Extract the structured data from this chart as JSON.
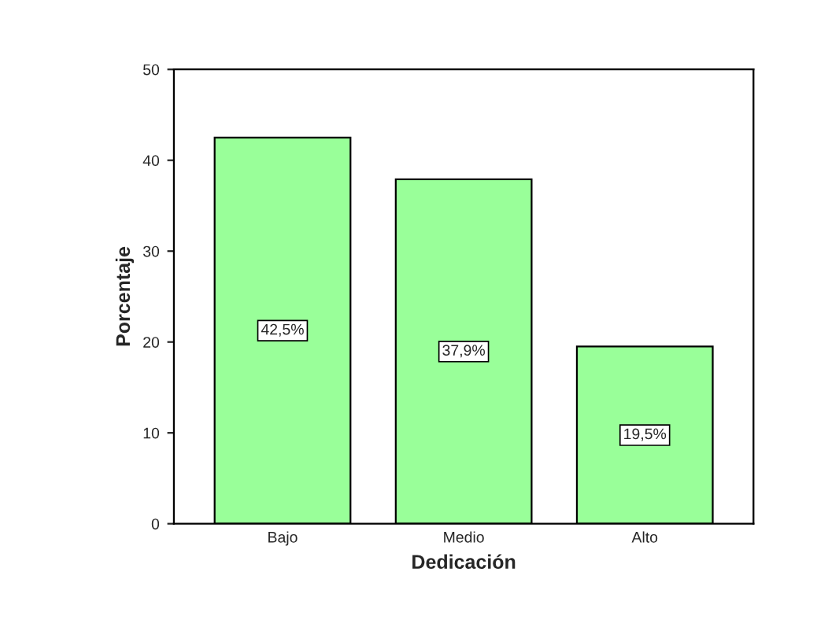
{
  "chart_data": {
    "type": "bar",
    "xlabel": "Dedicación",
    "ylabel": "Porcentaje",
    "categories": [
      "Bajo",
      "Medio",
      "Alto"
    ],
    "values": [
      42.5,
      37.9,
      19.5
    ],
    "value_labels": [
      "42,5%",
      "37,9%",
      "19,5%"
    ],
    "color": "#99ff99",
    "ylim": [
      0,
      50
    ],
    "yticks": [
      0,
      10,
      20,
      30,
      40,
      50
    ],
    "grid": false,
    "legend": false
  }
}
